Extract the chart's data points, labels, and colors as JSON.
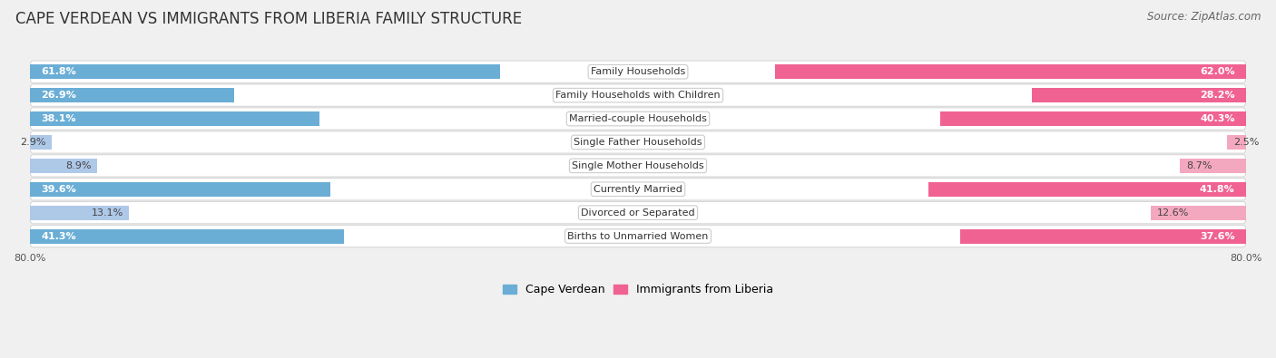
{
  "title": "CAPE VERDEAN VS IMMIGRANTS FROM LIBERIA FAMILY STRUCTURE",
  "source": "Source: ZipAtlas.com",
  "categories": [
    "Family Households",
    "Family Households with Children",
    "Married-couple Households",
    "Single Father Households",
    "Single Mother Households",
    "Currently Married",
    "Divorced or Separated",
    "Births to Unmarried Women"
  ],
  "cape_verdean": [
    61.8,
    26.9,
    38.1,
    2.9,
    8.9,
    39.6,
    13.1,
    41.3
  ],
  "liberia": [
    62.0,
    28.2,
    40.3,
    2.5,
    8.7,
    41.8,
    12.6,
    37.6
  ],
  "max_val": 80.0,
  "color_cv": "#6aaed6",
  "color_lib": "#f06292",
  "color_cv_light": "#aec8e8",
  "color_lib_light": "#f4a8c0",
  "row_bg_light": "#f0f0f0",
  "row_bg_white": "#ffffff",
  "bg_color": "#f0f0f0",
  "title_fontsize": 12,
  "source_fontsize": 8.5,
  "label_fontsize": 8,
  "value_fontsize": 8,
  "legend_fontsize": 9,
  "axis_label_fontsize": 8
}
